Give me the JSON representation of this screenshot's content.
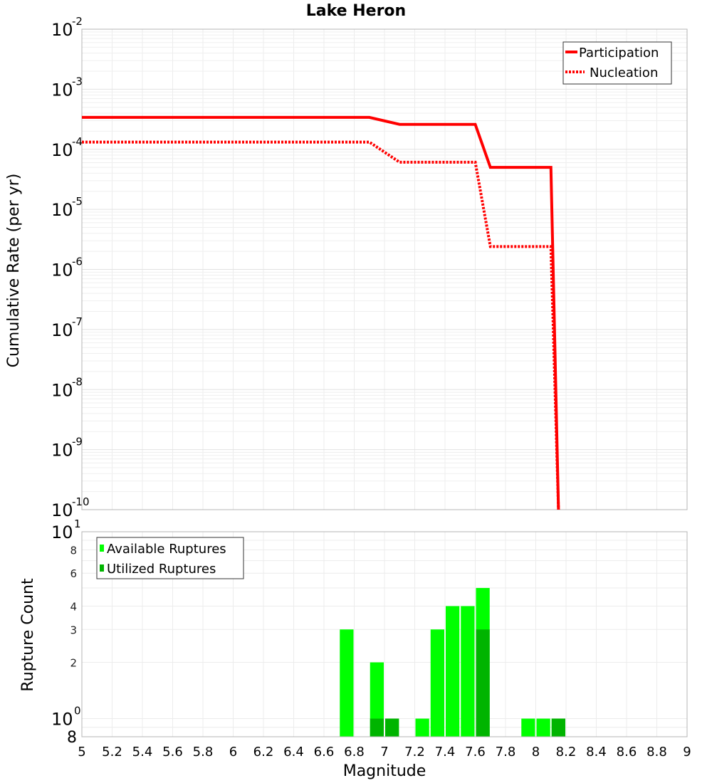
{
  "chart_data": [
    {
      "type": "line",
      "title": "Lake Heron",
      "xlabel": "",
      "ylabel": "Cumulative Rate (per yr)",
      "xlim": [
        5,
        9
      ],
      "ylim": [
        1e-10,
        0.01
      ],
      "yscale": "log",
      "y_ticks": [
        "10^-2",
        "10^-3",
        "10^-4",
        "10^-5",
        "10^-6",
        "10^-7",
        "10^-8",
        "10^-9",
        "10^-10"
      ],
      "grid": true,
      "legend_position": "upper right",
      "series": [
        {
          "name": "Participation",
          "style": "solid",
          "color": "#ff0000",
          "x": [
            5.0,
            6.9,
            7.1,
            7.6,
            7.7,
            8.1,
            8.15
          ],
          "y": [
            0.00034,
            0.00034,
            0.00026,
            0.00026,
            5e-05,
            5e-05,
            1e-10
          ]
        },
        {
          "name": "Nucleation",
          "style": "dotted",
          "color": "#ff0000",
          "x": [
            5.0,
            6.9,
            7.1,
            7.6,
            7.7,
            8.1,
            8.15
          ],
          "y": [
            0.000132,
            0.000132,
            6.1e-05,
            6.1e-05,
            2.4e-06,
            2.4e-06,
            1e-10
          ]
        }
      ]
    },
    {
      "type": "bar",
      "title": "",
      "xlabel": "Magnitude",
      "ylabel": "Rupture Count",
      "xlim": [
        5,
        9
      ],
      "ylim": [
        0.8,
        10
      ],
      "yscale": "log",
      "x_ticks": [
        "5",
        "5.2",
        "5.4",
        "5.6",
        "5.8",
        "6",
        "6.2",
        "6.4",
        "6.6",
        "6.8",
        "7",
        "7.2",
        "7.4",
        "7.6",
        "7.8",
        "8",
        "8.2",
        "8.4",
        "8.6",
        "8.8",
        "9"
      ],
      "y_ticks_major": [
        "10^1",
        "10^0"
      ],
      "y_ticks_minor": [
        "8",
        "6",
        "4",
        "3",
        "2",
        "8"
      ],
      "grid": true,
      "legend_position": "upper left",
      "bin_width": 0.1,
      "categories": [
        6.75,
        6.95,
        7.05,
        7.25,
        7.35,
        7.45,
        7.55,
        7.65,
        7.95,
        8.05,
        8.15
      ],
      "series": [
        {
          "name": "Available Ruptures",
          "color": "#00ff00",
          "values": [
            3,
            2,
            1,
            1,
            3,
            4,
            4,
            5,
            1,
            1,
            1
          ]
        },
        {
          "name": "Utilized Ruptures",
          "color": "#00b400",
          "values": [
            0,
            1,
            1,
            0,
            0,
            0,
            0,
            3,
            0,
            0,
            1
          ]
        }
      ]
    }
  ],
  "labels": {
    "title": "Lake Heron",
    "top_ylabel": "Cumulative Rate (per yr)",
    "bottom_ylabel": "Rupture Count",
    "xlabel": "Magnitude",
    "legend_top": [
      "Participation",
      "Nucleation"
    ],
    "legend_bottom": [
      "Available Ruptures",
      "Utilized Ruptures"
    ]
  },
  "colors": {
    "line": "#ff0000",
    "available": "#00ff00",
    "utilized": "#00b400",
    "grid": "#e8e8e8",
    "frame": "#b4b4b4"
  }
}
